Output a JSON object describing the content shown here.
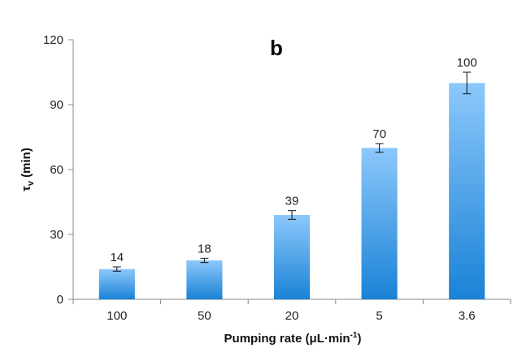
{
  "chart_data": {
    "type": "bar",
    "panel_label": "b",
    "categories": [
      "100",
      "50",
      "20",
      "5",
      "3.6"
    ],
    "values": [
      14,
      18,
      39,
      70,
      100
    ],
    "error": [
      1,
      1,
      2,
      2,
      5
    ],
    "data_labels": [
      "14",
      "18",
      "39",
      "70",
      "100"
    ],
    "ylabel_main": "τ",
    "ylabel_sub": "v",
    "ylabel_tail": " (min)",
    "xlabel_main": "Pumping rate (μL·min",
    "xlabel_sup": "-1",
    "xlabel_tail": ")",
    "ylim": [
      0,
      120
    ],
    "yticks": [
      0,
      30,
      60,
      90,
      120
    ],
    "grid": false,
    "colors": {
      "bar_top": "#8cc8fb",
      "bar_bottom": "#1a82d6",
      "axis": "#888888"
    }
  }
}
